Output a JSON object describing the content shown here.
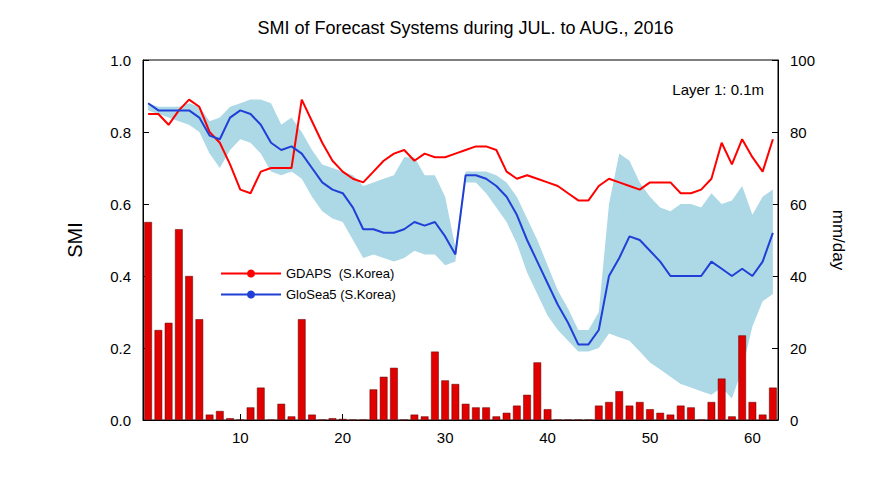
{
  "chart_data": {
    "type": "line",
    "title": "SMI of Forecast Systems during JUL. to AUG., 2016",
    "annotation": "Layer 1: 0.1m",
    "y_label": "SMI",
    "y2_label": "mm/day",
    "x": [
      1,
      2,
      3,
      4,
      5,
      6,
      7,
      8,
      9,
      10,
      11,
      12,
      13,
      14,
      15,
      16,
      17,
      18,
      19,
      20,
      21,
      22,
      23,
      24,
      25,
      26,
      27,
      28,
      29,
      30,
      31,
      32,
      33,
      34,
      35,
      36,
      37,
      38,
      39,
      40,
      41,
      42,
      43,
      44,
      45,
      46,
      47,
      48,
      49,
      50,
      51,
      52,
      53,
      54,
      55,
      56,
      57,
      58,
      59,
      60,
      61,
      62
    ],
    "xlim": [
      0.5,
      62.5
    ],
    "xticks": [
      10,
      20,
      30,
      40,
      50,
      60
    ],
    "ylim": [
      0,
      1
    ],
    "yticks": [
      {
        "value": 0,
        "label": "0.0"
      },
      0.2,
      0.4,
      0.6,
      0.8,
      {
        "value": 1,
        "label": "1.0"
      }
    ],
    "y2lim": [
      0,
      100
    ],
    "y2ticks": [
      0,
      20,
      40,
      60,
      80,
      100
    ],
    "grid": false,
    "legend": "left",
    "series": [
      {
        "type": "band",
        "color": "#add8e6",
        "lower": [
          0.86,
          0.85,
          0.84,
          0.83,
          0.82,
          0.8,
          0.74,
          0.7,
          0.75,
          0.78,
          0.77,
          0.74,
          0.69,
          0.68,
          0.69,
          0.67,
          0.62,
          0.58,
          0.56,
          0.55,
          0.5,
          0.45,
          0.46,
          0.45,
          0.44,
          0.45,
          0.47,
          0.46,
          0.46,
          0.43,
          0.44,
          0.66,
          0.66,
          0.63,
          0.59,
          0.55,
          0.49,
          0.41,
          0.35,
          0.29,
          0.25,
          0.22,
          0.19,
          0.19,
          0.2,
          0.24,
          0.23,
          0.22,
          0.19,
          0.16,
          0.14,
          0.12,
          0.1,
          0.09,
          0.08,
          0.07,
          0.09,
          0.06,
          0.14,
          0.26,
          0.33,
          0.35
        ],
        "upper": [
          0.88,
          0.87,
          0.87,
          0.87,
          0.88,
          0.87,
          0.83,
          0.84,
          0.87,
          0.88,
          0.89,
          0.89,
          0.88,
          0.82,
          0.84,
          0.8,
          0.75,
          0.71,
          0.7,
          0.69,
          0.68,
          0.65,
          0.66,
          0.67,
          0.68,
          0.73,
          0.73,
          0.68,
          0.68,
          0.62,
          0.48,
          0.69,
          0.69,
          0.69,
          0.68,
          0.66,
          0.62,
          0.56,
          0.5,
          0.43,
          0.36,
          0.31,
          0.25,
          0.25,
          0.3,
          0.6,
          0.74,
          0.72,
          0.66,
          0.62,
          0.59,
          0.58,
          0.6,
          0.6,
          0.59,
          0.63,
          0.6,
          0.61,
          0.65,
          0.57,
          0.62,
          0.64
        ]
      },
      {
        "type": "bar",
        "color": "#e00000",
        "axis": "y2",
        "values": [
          55,
          25,
          27,
          53,
          40,
          28,
          1.5,
          2.5,
          0.5,
          0,
          3.5,
          9,
          0,
          4.5,
          1,
          28,
          1.5,
          0,
          0.5,
          0.3,
          0,
          0,
          8.5,
          12,
          14.5,
          0,
          1.5,
          1,
          19,
          11,
          10,
          4.5,
          3.5,
          3.5,
          1,
          2,
          4,
          7,
          16,
          3,
          0,
          0,
          0,
          0,
          4,
          5,
          8,
          4,
          5,
          3,
          2,
          1.5,
          4,
          3.5,
          0,
          5,
          11.5,
          1,
          23.5,
          5,
          1.5,
          9
        ]
      },
      {
        "type": "line",
        "name": "GDAPS  (S.Korea)",
        "color": "#ff0000",
        "values": [
          0.85,
          0.85,
          0.82,
          0.86,
          0.89,
          0.87,
          0.8,
          0.77,
          0.71,
          0.64,
          0.63,
          0.69,
          0.7,
          0.7,
          0.7,
          0.89,
          0.83,
          0.77,
          0.72,
          0.69,
          0.67,
          0.66,
          0.69,
          0.72,
          0.74,
          0.75,
          0.72,
          0.74,
          0.73,
          0.73,
          0.74,
          0.75,
          0.76,
          0.76,
          0.75,
          0.69,
          0.67,
          0.68,
          0.67,
          0.66,
          0.65,
          0.63,
          0.61,
          0.61,
          0.65,
          0.67,
          0.66,
          0.65,
          0.64,
          0.66,
          0.66,
          0.66,
          0.63,
          0.63,
          0.64,
          0.67,
          0.77,
          0.71,
          0.78,
          0.73,
          0.69,
          0.78
        ]
      },
      {
        "type": "line",
        "name": "GloSea5 (S.Korea)",
        "color": "#1f3fd6",
        "values": [
          0.88,
          0.86,
          0.86,
          0.86,
          0.86,
          0.84,
          0.79,
          0.78,
          0.84,
          0.86,
          0.85,
          0.82,
          0.77,
          0.75,
          0.76,
          0.74,
          0.7,
          0.66,
          0.64,
          0.63,
          0.59,
          0.53,
          0.53,
          0.52,
          0.52,
          0.53,
          0.55,
          0.54,
          0.55,
          0.51,
          0.46,
          0.68,
          0.68,
          0.67,
          0.65,
          0.62,
          0.57,
          0.5,
          0.44,
          0.38,
          0.32,
          0.27,
          0.21,
          0.21,
          0.25,
          0.4,
          0.45,
          0.51,
          0.5,
          0.47,
          0.44,
          0.4,
          0.4,
          0.4,
          0.4,
          0.44,
          0.42,
          0.4,
          0.42,
          0.4,
          0.44,
          0.52
        ]
      }
    ]
  }
}
